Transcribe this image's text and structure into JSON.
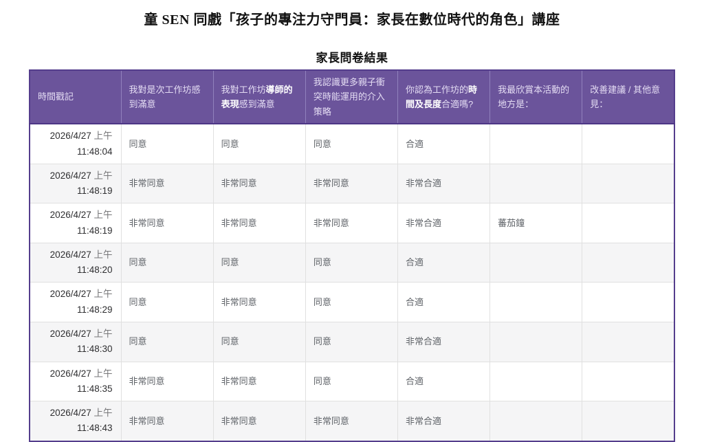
{
  "page": {
    "title": "童 SEN 同戲「孩子的專注力守門員：家長在數位時代的角色」講座",
    "subtitle": "家長問卷結果"
  },
  "colors": {
    "header_background": "#6b549b",
    "table_border": "#543d8c",
    "zebra_stripe": "#f5f5f6"
  },
  "table": {
    "header": {
      "c1": "時間戳記",
      "c2": "我對是次工作坊感到滿意",
      "c3_pre": "我對工作坊",
      "c3_bold": "導師的表現",
      "c3_post": "感到滿意",
      "c4": "我認識更多親子衝突時能運用的介入策略",
      "c5_pre": "你認為工作坊的",
      "c5_bold": "時間及長度",
      "c5_post": "合適嗎?",
      "c6": "我最欣賞本活動的地方是：",
      "c7": "改善建議 / 其他意見："
    },
    "rows": [
      {
        "date": "2026/4/27",
        "ampm": "上午",
        "time": "11:48:04",
        "c2": "同意",
        "c3": "同意",
        "c4": "同意",
        "c5": "合適",
        "c6": "",
        "c7": ""
      },
      {
        "date": "2026/4/27",
        "ampm": "上午",
        "time": "11:48:19",
        "c2": "非常同意",
        "c3": "非常同意",
        "c4": "非常同意",
        "c5": "非常合適",
        "c6": "",
        "c7": ""
      },
      {
        "date": "2026/4/27",
        "ampm": "上午",
        "time": "11:48:19",
        "c2": "非常同意",
        "c3": "非常同意",
        "c4": "非常同意",
        "c5": "非常合適",
        "c6": "蕃茄鐘",
        "c7": ""
      },
      {
        "date": "2026/4/27",
        "ampm": "上午",
        "time": "11:48:20",
        "c2": "同意",
        "c3": "同意",
        "c4": "同意",
        "c5": "合適",
        "c6": "",
        "c7": ""
      },
      {
        "date": "2026/4/27",
        "ampm": "上午",
        "time": "11:48:29",
        "c2": "同意",
        "c3": "非常同意",
        "c4": "同意",
        "c5": "合適",
        "c6": "",
        "c7": ""
      },
      {
        "date": "2026/4/27",
        "ampm": "上午",
        "time": "11:48:30",
        "c2": "同意",
        "c3": "同意",
        "c4": "同意",
        "c5": "非常合適",
        "c6": "",
        "c7": ""
      },
      {
        "date": "2026/4/27",
        "ampm": "上午",
        "time": "11:48:35",
        "c2": "非常同意",
        "c3": "非常同意",
        "c4": "同意",
        "c5": "合適",
        "c6": "",
        "c7": ""
      },
      {
        "date": "2026/4/27",
        "ampm": "上午",
        "time": "11:48:43",
        "c2": "非常同意",
        "c3": "非常同意",
        "c4": "非常同意",
        "c5": "非常合適",
        "c6": "",
        "c7": ""
      }
    ]
  }
}
